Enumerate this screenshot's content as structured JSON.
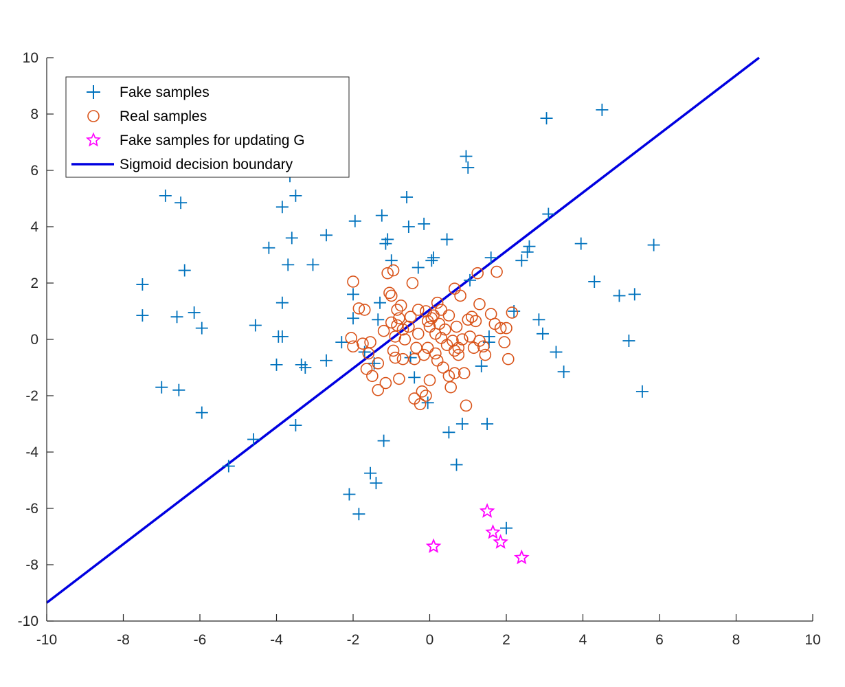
{
  "chart_data": {
    "type": "scatter",
    "title": "",
    "xlabel": "",
    "ylabel": "",
    "xlim": [
      -10,
      10
    ],
    "ylim": [
      -10,
      10
    ],
    "xticks": [
      "-10",
      "-8",
      "-6",
      "-4",
      "-2",
      "0",
      "2",
      "4",
      "6",
      "8",
      "10"
    ],
    "yticks": [
      "-10",
      "-8",
      "-6",
      "-4",
      "-2",
      "0",
      "2",
      "4",
      "6",
      "8",
      "10"
    ],
    "grid": false,
    "legend_position": "top-left",
    "series": [
      {
        "name": "Fake samples",
        "marker": "plus",
        "color": "#0072BD",
        "points": [
          [
            -7.5,
            1.95
          ],
          [
            -7.5,
            0.85
          ],
          [
            -6.9,
            5.1
          ],
          [
            -6.5,
            4.85
          ],
          [
            -6.4,
            2.45
          ],
          [
            -6.6,
            0.8
          ],
          [
            -6.15,
            0.95
          ],
          [
            -5.95,
            0.4
          ],
          [
            -7.0,
            -1.7
          ],
          [
            -6.55,
            -1.8
          ],
          [
            -5.95,
            -2.6
          ],
          [
            -5.25,
            -4.5
          ],
          [
            -4.6,
            -3.55
          ],
          [
            -4.55,
            0.5
          ],
          [
            -4.2,
            3.25
          ],
          [
            -3.85,
            4.7
          ],
          [
            -3.7,
            2.65
          ],
          [
            -3.6,
            3.6
          ],
          [
            -3.5,
            5.1
          ],
          [
            -3.65,
            5.8
          ],
          [
            -3.85,
            1.3
          ],
          [
            -3.95,
            0.1
          ],
          [
            -3.85,
            0.1
          ],
          [
            -4.0,
            -0.9
          ],
          [
            -3.5,
            -3.05
          ],
          [
            -3.35,
            -0.9
          ],
          [
            -3.25,
            -1.0
          ],
          [
            -3.05,
            2.65
          ],
          [
            -2.7,
            3.7
          ],
          [
            -2.7,
            -0.75
          ],
          [
            -2.3,
            -0.1
          ],
          [
            -2.1,
            -5.5
          ],
          [
            -1.95,
            4.2
          ],
          [
            -2.0,
            1.6
          ],
          [
            -2.0,
            0.75
          ],
          [
            -1.85,
            -6.2
          ],
          [
            -1.7,
            -0.45
          ],
          [
            -1.55,
            -4.75
          ],
          [
            -1.4,
            -5.1
          ],
          [
            -1.45,
            -0.85
          ],
          [
            -1.35,
            0.7
          ],
          [
            -1.3,
            1.3
          ],
          [
            -1.25,
            4.4
          ],
          [
            -1.15,
            3.4
          ],
          [
            -1.1,
            3.55
          ],
          [
            -1.0,
            2.8
          ],
          [
            -1.2,
            -3.6
          ],
          [
            -0.6,
            5.05
          ],
          [
            -0.55,
            4.0
          ],
          [
            -0.3,
            2.55
          ],
          [
            -0.15,
            4.1
          ],
          [
            0.05,
            2.8
          ],
          [
            0.1,
            2.9
          ],
          [
            -0.05,
            -2.25
          ],
          [
            -0.4,
            -1.35
          ],
          [
            -0.5,
            -0.65
          ],
          [
            0.45,
            3.55
          ],
          [
            0.5,
            -3.3
          ],
          [
            0.7,
            -4.45
          ],
          [
            0.85,
            -3.0
          ],
          [
            0.95,
            6.5
          ],
          [
            1.0,
            6.1
          ],
          [
            1.05,
            2.1
          ],
          [
            1.35,
            -0.95
          ],
          [
            1.5,
            -3.0
          ],
          [
            1.6,
            2.9
          ],
          [
            1.55,
            0.1
          ],
          [
            1.55,
            -0.1
          ],
          [
            2.0,
            -6.7
          ],
          [
            2.2,
            1.0
          ],
          [
            2.4,
            2.8
          ],
          [
            2.55,
            3.1
          ],
          [
            2.6,
            3.3
          ],
          [
            2.85,
            0.7
          ],
          [
            2.95,
            0.2
          ],
          [
            3.05,
            7.85
          ],
          [
            3.1,
            4.45
          ],
          [
            3.3,
            -0.45
          ],
          [
            3.5,
            -1.15
          ],
          [
            3.95,
            3.4
          ],
          [
            4.3,
            2.05
          ],
          [
            4.5,
            8.15
          ],
          [
            4.95,
            1.55
          ],
          [
            5.2,
            -0.05
          ],
          [
            5.35,
            1.6
          ],
          [
            5.55,
            -1.85
          ],
          [
            5.85,
            3.35
          ]
        ]
      },
      {
        "name": "Real samples",
        "marker": "circle",
        "color": "#D95319",
        "points": [
          [
            -2.0,
            2.05
          ],
          [
            -2.05,
            0.05
          ],
          [
            -2.0,
            -0.25
          ],
          [
            -1.85,
            1.1
          ],
          [
            -1.75,
            -0.15
          ],
          [
            -1.7,
            1.05
          ],
          [
            -1.65,
            -1.05
          ],
          [
            -1.6,
            -0.5
          ],
          [
            -1.55,
            -0.1
          ],
          [
            -1.5,
            -1.3
          ],
          [
            -1.35,
            -1.8
          ],
          [
            -1.35,
            -0.85
          ],
          [
            -1.2,
            0.3
          ],
          [
            -1.15,
            -1.55
          ],
          [
            -1.1,
            2.35
          ],
          [
            -1.05,
            1.65
          ],
          [
            -1.0,
            1.55
          ],
          [
            -1.0,
            0.6
          ],
          [
            -0.95,
            2.45
          ],
          [
            -0.95,
            -0.4
          ],
          [
            -0.9,
            -0.65
          ],
          [
            -0.9,
            0.1
          ],
          [
            -0.85,
            1.05
          ],
          [
            -0.85,
            0.5
          ],
          [
            -0.8,
            0.75
          ],
          [
            -0.8,
            -1.4
          ],
          [
            -0.75,
            1.2
          ],
          [
            -0.7,
            0.35
          ],
          [
            -0.7,
            -0.7
          ],
          [
            -0.65,
            0.0
          ],
          [
            -0.55,
            0.45
          ],
          [
            -0.5,
            0.8
          ],
          [
            -0.45,
            2.0
          ],
          [
            -0.4,
            -0.7
          ],
          [
            -0.4,
            -2.1
          ],
          [
            -0.35,
            -0.3
          ],
          [
            -0.3,
            1.05
          ],
          [
            -0.3,
            0.2
          ],
          [
            -0.25,
            -2.3
          ],
          [
            -0.2,
            -1.85
          ],
          [
            -0.15,
            -0.55
          ],
          [
            -0.1,
            -2.0
          ],
          [
            -0.1,
            1.0
          ],
          [
            -0.05,
            0.65
          ],
          [
            -0.05,
            -0.3
          ],
          [
            0.0,
            -1.45
          ],
          [
            0.0,
            0.45
          ],
          [
            0.05,
            0.75
          ],
          [
            0.1,
            0.85
          ],
          [
            0.15,
            -0.5
          ],
          [
            0.15,
            0.2
          ],
          [
            0.2,
            1.3
          ],
          [
            0.2,
            -0.75
          ],
          [
            0.25,
            0.55
          ],
          [
            0.3,
            1.05
          ],
          [
            0.3,
            0.05
          ],
          [
            0.35,
            -1.0
          ],
          [
            0.4,
            0.35
          ],
          [
            0.45,
            -0.2
          ],
          [
            0.5,
            0.85
          ],
          [
            0.5,
            -1.3
          ],
          [
            0.55,
            -1.7
          ],
          [
            0.6,
            -0.05
          ],
          [
            0.65,
            1.8
          ],
          [
            0.65,
            -0.4
          ],
          [
            0.65,
            -1.2
          ],
          [
            0.7,
            0.45
          ],
          [
            0.75,
            -0.3
          ],
          [
            0.75,
            -0.55
          ],
          [
            0.8,
            1.55
          ],
          [
            0.85,
            0.0
          ],
          [
            0.9,
            -1.2
          ],
          [
            0.95,
            -2.35
          ],
          [
            1.0,
            0.7
          ],
          [
            1.05,
            0.1
          ],
          [
            1.1,
            0.8
          ],
          [
            1.15,
            -0.3
          ],
          [
            1.2,
            0.65
          ],
          [
            1.25,
            2.35
          ],
          [
            1.3,
            -0.05
          ],
          [
            1.3,
            1.25
          ],
          [
            1.4,
            -0.25
          ],
          [
            1.45,
            -0.55
          ],
          [
            1.6,
            0.9
          ],
          [
            1.7,
            0.55
          ],
          [
            1.75,
            2.4
          ],
          [
            1.85,
            0.4
          ],
          [
            1.95,
            -0.1
          ],
          [
            2.0,
            0.4
          ],
          [
            2.05,
            -0.7
          ],
          [
            2.15,
            0.95
          ]
        ]
      },
      {
        "name": "Fake samples for updating G",
        "marker": "star",
        "color": "#FF00FF",
        "points": [
          [
            0.1,
            -7.35
          ],
          [
            1.5,
            -6.1
          ],
          [
            1.65,
            -6.85
          ],
          [
            1.85,
            -7.2
          ],
          [
            2.4,
            -7.75
          ]
        ]
      },
      {
        "name": "Sigmoid decision boundary",
        "marker": "line",
        "color": "#0000E0",
        "points": [
          [
            -10,
            -9.35
          ],
          [
            8.6,
            10
          ]
        ]
      }
    ]
  }
}
